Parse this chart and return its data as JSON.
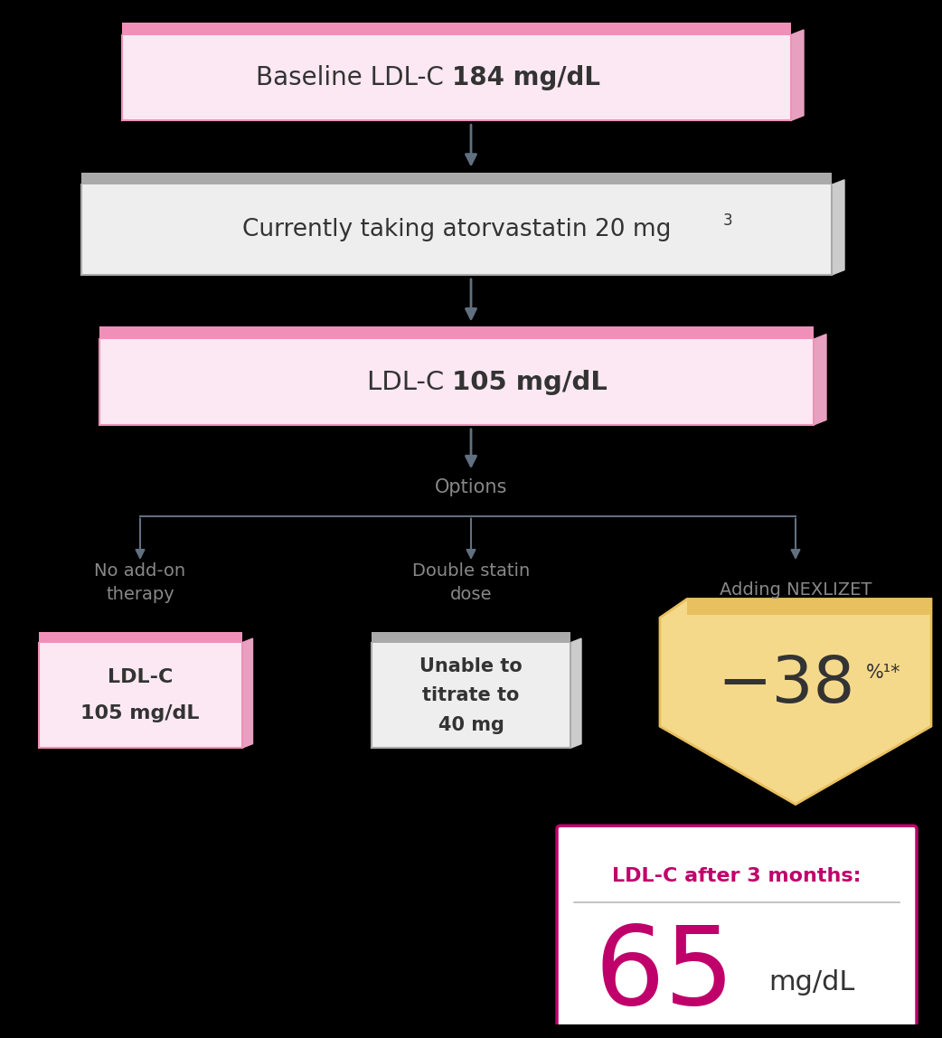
{
  "bg_color": "#000000",
  "pink_border": "#f090b8",
  "pink_fill": "#fce8f2",
  "pink_top": "#f090b8",
  "gray_border": "#aaaaaa",
  "gray_fill": "#eeeeee",
  "gray_top": "#aaaaaa",
  "gray_side": "#cccccc",
  "gold_fill": "#f5d98a",
  "gold_top": "#e8c060",
  "gold_side": "#e0b840",
  "arrow_color": "#607080",
  "magenta": "#c0006a",
  "dark_text": "#333333",
  "medium_text": "#888888",
  "box1_text_normal": "Baseline LDL-C ",
  "box1_text_bold": "184 mg/dL",
  "box2_text": "Currently taking atorvastatin 20 mg",
  "box2_superscript": "3",
  "box3_text_normal": "LDL-C ",
  "box3_text_bold": "105 mg/dL",
  "options_label": "Options",
  "col1_label": "No add-on\ntherapy",
  "col2_label": "Double statin\ndose",
  "col3_label": "Adding NEXLIZET",
  "box_left_line1": "LDL-C",
  "box_left_line2": "105 mg/dL",
  "box_mid_line1": "Unable to",
  "box_mid_line2": "titrate to",
  "box_mid_line3": "40 mg",
  "pct_minus": "−",
  "pct_number": "38",
  "pct_super": "%¹*",
  "result_label": "LDL-C after 3 months:",
  "result_value": "65",
  "result_unit": "mg/dL",
  "white": "#ffffff"
}
